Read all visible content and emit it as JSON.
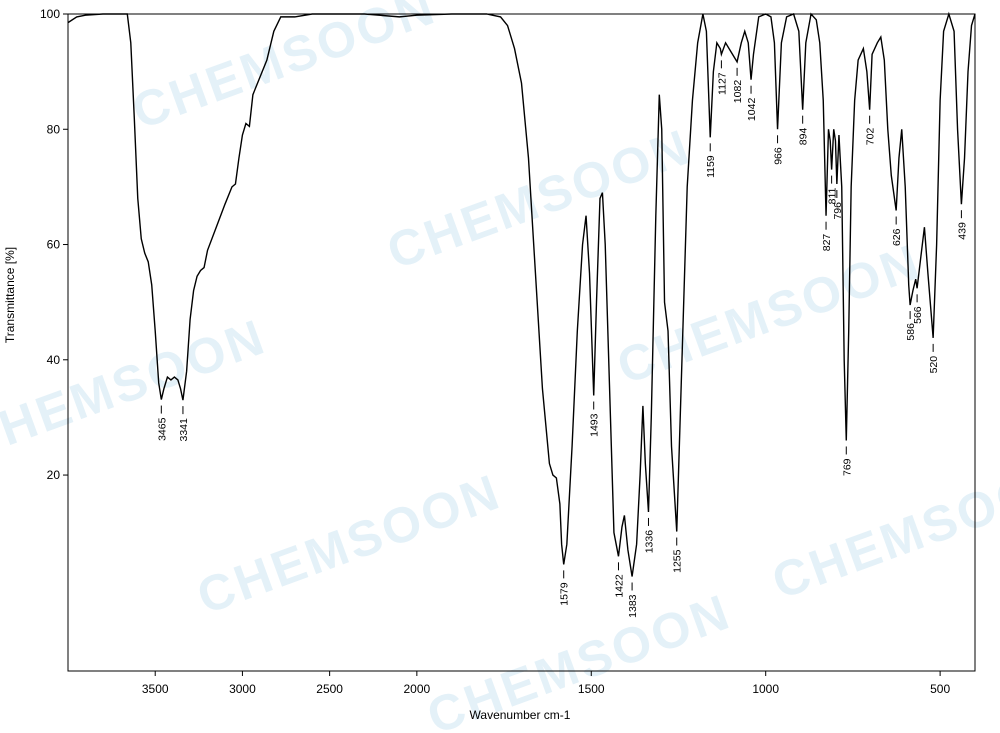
{
  "chart_data": {
    "type": "line",
    "xlabel": "Wavenumber  cm-1",
    "ylabel": "Transmittance [%]",
    "watermark": "CHEMSOON",
    "color": "#000000",
    "xlim": [
      4000,
      400
    ],
    "x_scale_break": 2000,
    "x_scale_stretch_below_break": 2,
    "xticks": [
      3500,
      3000,
      2500,
      2000,
      1500,
      1000,
      500
    ],
    "ylim": [
      -14,
      100
    ],
    "yticks": [
      20,
      40,
      60,
      80,
      100
    ],
    "x": [
      4000,
      3950,
      3900,
      3800,
      3700,
      3660,
      3640,
      3620,
      3600,
      3580,
      3560,
      3540,
      3520,
      3500,
      3480,
      3465,
      3450,
      3430,
      3410,
      3390,
      3370,
      3355,
      3341,
      3320,
      3300,
      3280,
      3260,
      3240,
      3220,
      3200,
      3150,
      3100,
      3060,
      3040,
      3020,
      3000,
      2980,
      2960,
      2940,
      2900,
      2860,
      2820,
      2780,
      2700,
      2600,
      2500,
      2300,
      2100,
      2000,
      1900,
      1800,
      1760,
      1740,
      1720,
      1700,
      1680,
      1660,
      1640,
      1620,
      1610,
      1600,
      1590,
      1585,
      1579,
      1570,
      1555,
      1540,
      1525,
      1515,
      1505,
      1493,
      1485,
      1475,
      1468,
      1460,
      1445,
      1435,
      1422,
      1412,
      1405,
      1395,
      1383,
      1370,
      1360,
      1352,
      1345,
      1336,
      1328,
      1315,
      1305,
      1298,
      1290,
      1280,
      1270,
      1255,
      1240,
      1225,
      1210,
      1195,
      1180,
      1170,
      1159,
      1150,
      1140,
      1130,
      1127,
      1115,
      1100,
      1082,
      1070,
      1060,
      1050,
      1042,
      1035,
      1020,
      1000,
      985,
      975,
      966,
      955,
      940,
      920,
      905,
      894,
      885,
      870,
      855,
      845,
      835,
      827,
      820,
      815,
      811,
      805,
      800,
      796,
      790,
      782,
      775,
      769,
      762,
      755,
      745,
      735,
      720,
      710,
      702,
      695,
      680,
      670,
      660,
      650,
      640,
      626,
      618,
      610,
      600,
      590,
      586,
      578,
      570,
      566,
      555,
      545,
      535,
      520,
      510,
      500,
      490,
      475,
      460,
      450,
      439,
      430,
      420,
      410,
      400
    ],
    "values": [
      98.5,
      99.5,
      99.8,
      100,
      100,
      100,
      95,
      82,
      68,
      61,
      58.5,
      57,
      53,
      45,
      36,
      33.1,
      35,
      37,
      36.5,
      37,
      36.5,
      35,
      33,
      38,
      47,
      52,
      54.5,
      55.5,
      56,
      59,
      63,
      67,
      70,
      70.5,
      75,
      79,
      81,
      80.5,
      86,
      89,
      92,
      97,
      99.5,
      99.5,
      100,
      100,
      100,
      99.5,
      99.8,
      100,
      100,
      99.5,
      98,
      94,
      88,
      75,
      55,
      35,
      22,
      20,
      19.5,
      15,
      8,
      4.5,
      8,
      25,
      45,
      60,
      65,
      55,
      33.8,
      50,
      68,
      69,
      60,
      30,
      10,
      5.9,
      11,
      13,
      7,
      2.4,
      8,
      20,
      32,
      22,
      13.6,
      30,
      65,
      86,
      80,
      50,
      45,
      25,
      10.2,
      40,
      70,
      85,
      95,
      100,
      97,
      78.6,
      90,
      95,
      94,
      93,
      95,
      93.5,
      91.7,
      95,
      97,
      95,
      88.6,
      93,
      99.5,
      100,
      99.5,
      95,
      80,
      95,
      99.5,
      100,
      97,
      83.4,
      95,
      100,
      99,
      95,
      85,
      65,
      80,
      78,
      73,
      80,
      78,
      70.5,
      79,
      70,
      40,
      26,
      45,
      70,
      85,
      92,
      94,
      90,
      83.4,
      93,
      95,
      96,
      92,
      80,
      72,
      65.9,
      75,
      80,
      70,
      53,
      49.5,
      52,
      54,
      52.4,
      58,
      63,
      55,
      43.8,
      60,
      85,
      97,
      100,
      97,
      80,
      67,
      75,
      90,
      98,
      100
    ],
    "peaks": [
      {
        "x": 3465,
        "y": 33.1
      },
      {
        "x": 3341,
        "y": 33
      },
      {
        "x": 1579,
        "y": 4.5
      },
      {
        "x": 1493,
        "y": 33.8
      },
      {
        "x": 1422,
        "y": 5.9
      },
      {
        "x": 1383,
        "y": 2.4
      },
      {
        "x": 1336,
        "y": 13.6
      },
      {
        "x": 1255,
        "y": 10.2
      },
      {
        "x": 1159,
        "y": 78.6
      },
      {
        "x": 1127,
        "y": 93
      },
      {
        "x": 1082,
        "y": 91.7
      },
      {
        "x": 1042,
        "y": 88.6
      },
      {
        "x": 966,
        "y": 80
      },
      {
        "x": 894,
        "y": 83.4
      },
      {
        "x": 827,
        "y": 65
      },
      {
        "x": 811,
        "y": 73
      },
      {
        "x": 796,
        "y": 70.5
      },
      {
        "x": 769,
        "y": 26
      },
      {
        "x": 702,
        "y": 83.4
      },
      {
        "x": 626,
        "y": 65.9
      },
      {
        "x": 586,
        "y": 49.5
      },
      {
        "x": 566,
        "y": 52.4
      },
      {
        "x": 520,
        "y": 43.8
      },
      {
        "x": 439,
        "y": 67
      }
    ]
  }
}
